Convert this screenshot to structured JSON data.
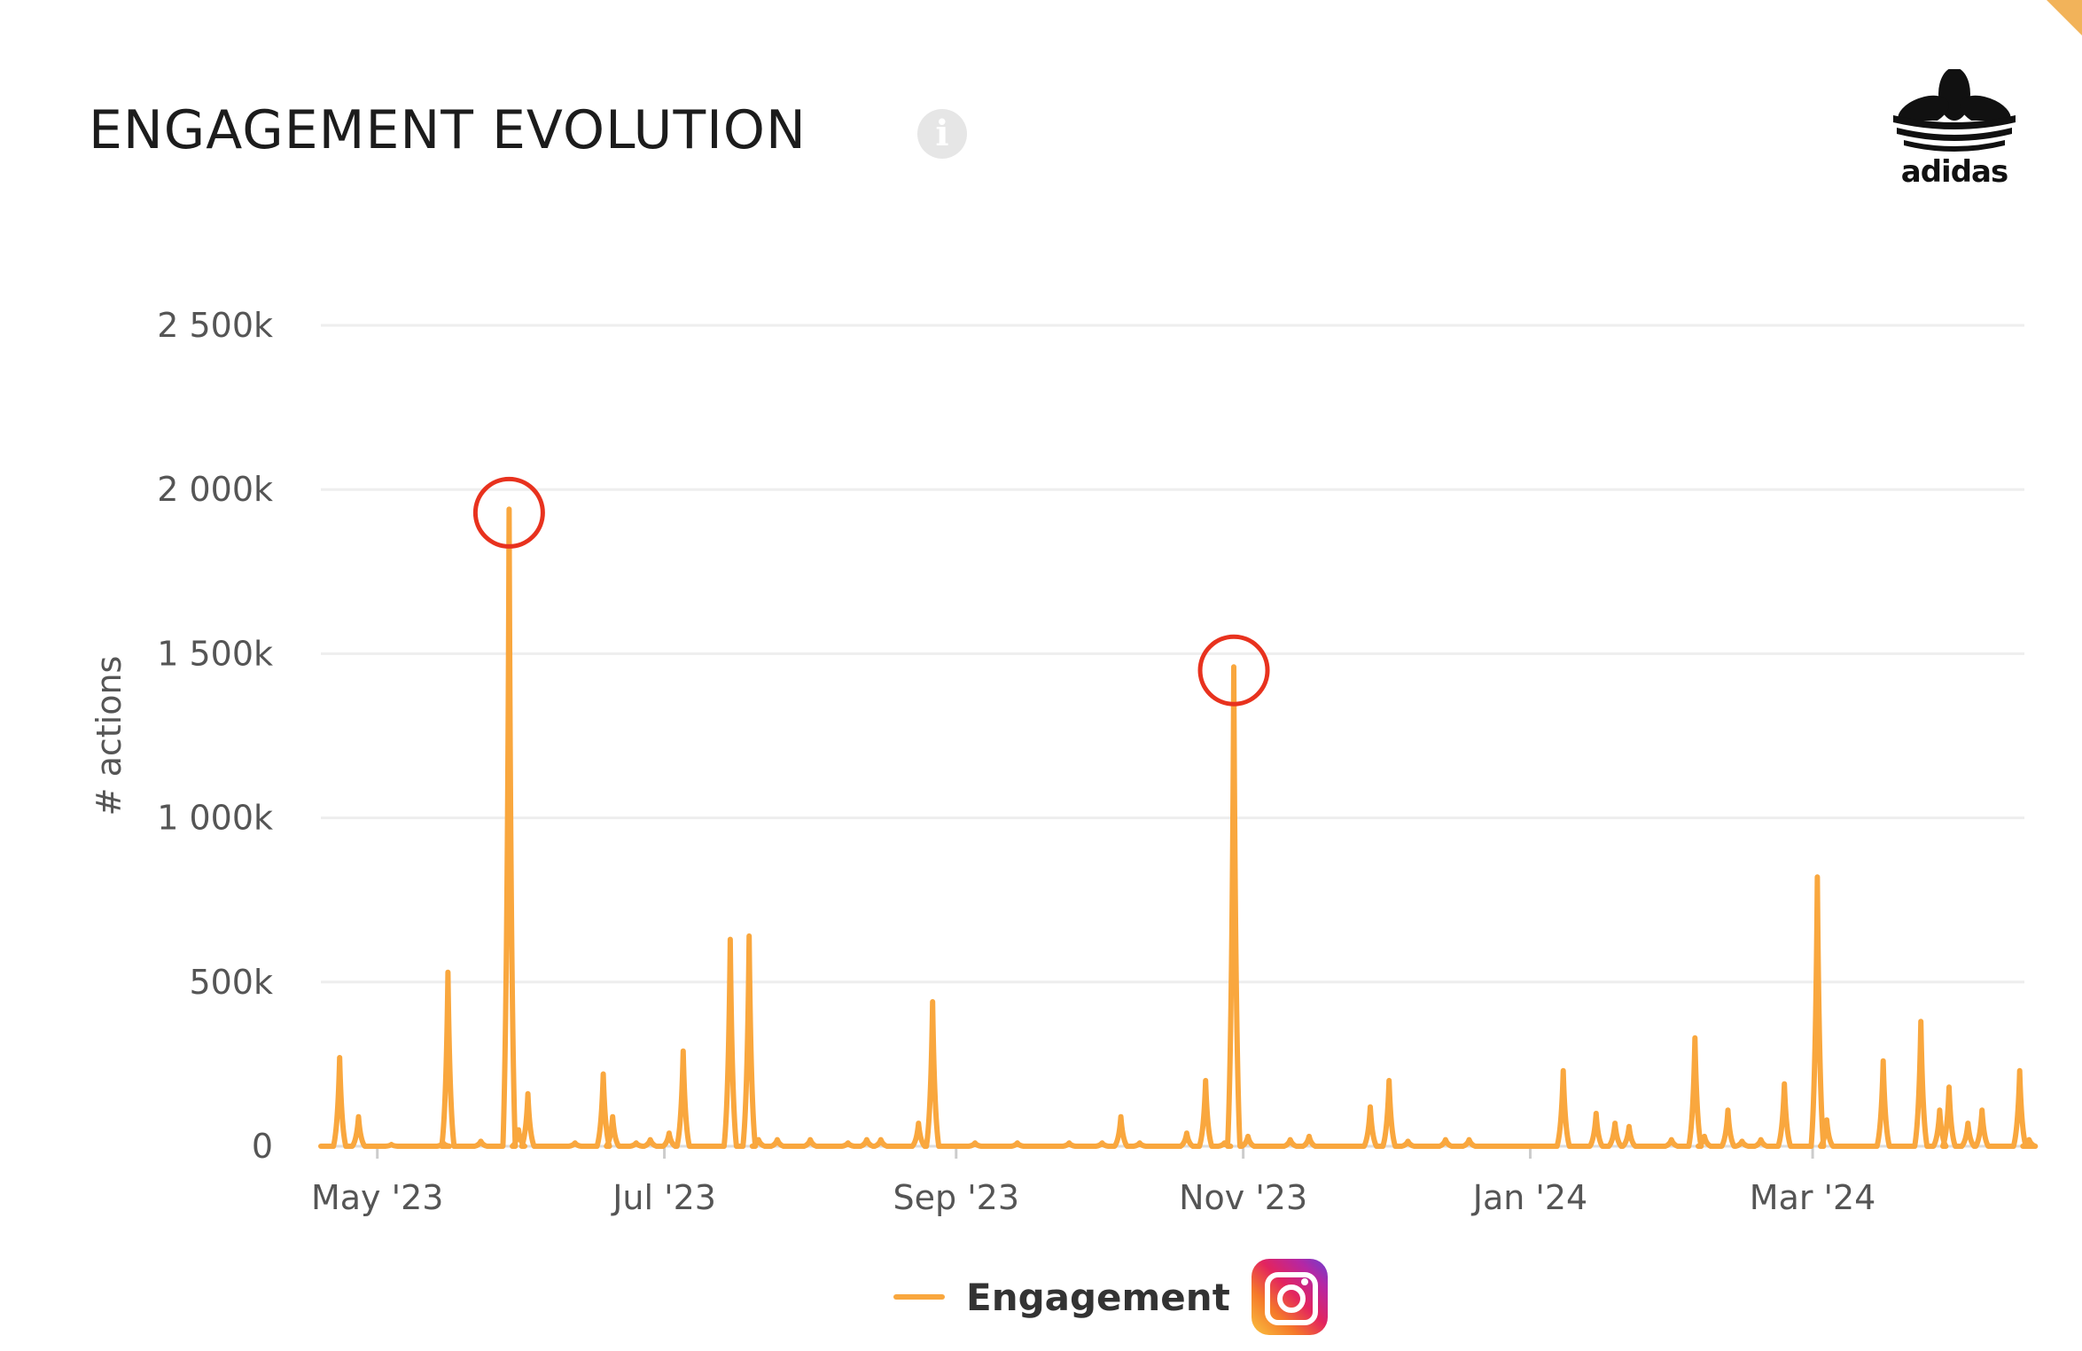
{
  "header": {
    "title": "ENGAGEMENT EVOLUTION",
    "info_icon": "info-icon",
    "logo_text": "adidas"
  },
  "colors": {
    "series": "#f9a73e",
    "highlight": "#e8321e",
    "grid": "#eeeeee",
    "axis_text": "#555555",
    "instagram": "#e1306c"
  },
  "chart_data": {
    "type": "line",
    "ylabel": "# actions",
    "xlabel": "",
    "ylim": [
      0,
      2500000
    ],
    "yticks": [
      0,
      500000,
      1000000,
      1500000,
      2000000,
      2500000
    ],
    "ytick_labels": [
      "0",
      "500k",
      "1 000k",
      "1 500k",
      "2 000k",
      "2 500k"
    ],
    "xlim": [
      "2023-04-19",
      "2024-04-15"
    ],
    "xticks": [
      "2023-05-01",
      "2023-07-01",
      "2023-09-01",
      "2023-11-01",
      "2024-01-01",
      "2024-03-01"
    ],
    "xtick_labels": [
      "May '23",
      "Jul '23",
      "Sep '23",
      "Nov '23",
      "Jan '24",
      "Mar '24"
    ],
    "grid": true,
    "legend_position": "bottom-center",
    "highlighted_points": [
      {
        "x": "2023-05-29",
        "y": 1940000
      },
      {
        "x": "2023-10-30",
        "y": 1460000
      }
    ],
    "series": [
      {
        "name": "Engagement",
        "icon": "instagram-icon",
        "points": [
          [
            "2023-04-23",
            270000
          ],
          [
            "2023-04-27",
            90000
          ],
          [
            "2023-05-04",
            5000
          ],
          [
            "2023-05-15",
            10000
          ],
          [
            "2023-05-16",
            530000
          ],
          [
            "2023-05-23",
            15000
          ],
          [
            "2023-05-29",
            1940000
          ],
          [
            "2023-05-31",
            50000
          ],
          [
            "2023-06-02",
            160000
          ],
          [
            "2023-06-12",
            10000
          ],
          [
            "2023-06-18",
            220000
          ],
          [
            "2023-06-20",
            90000
          ],
          [
            "2023-06-25",
            10000
          ],
          [
            "2023-06-28",
            20000
          ],
          [
            "2023-07-02",
            40000
          ],
          [
            "2023-07-05",
            290000
          ],
          [
            "2023-07-15",
            630000
          ],
          [
            "2023-07-19",
            640000
          ],
          [
            "2023-07-21",
            20000
          ],
          [
            "2023-07-25",
            20000
          ],
          [
            "2023-08-01",
            20000
          ],
          [
            "2023-08-09",
            10000
          ],
          [
            "2023-08-13",
            20000
          ],
          [
            "2023-08-16",
            20000
          ],
          [
            "2023-08-24",
            70000
          ],
          [
            "2023-08-27",
            440000
          ],
          [
            "2023-09-05",
            10000
          ],
          [
            "2023-09-14",
            10000
          ],
          [
            "2023-09-25",
            10000
          ],
          [
            "2023-10-02",
            10000
          ],
          [
            "2023-10-06",
            90000
          ],
          [
            "2023-10-10",
            10000
          ],
          [
            "2023-10-20",
            40000
          ],
          [
            "2023-10-24",
            200000
          ],
          [
            "2023-10-28",
            10000
          ],
          [
            "2023-10-30",
            1460000
          ],
          [
            "2023-11-02",
            30000
          ],
          [
            "2023-11-11",
            20000
          ],
          [
            "2023-11-15",
            30000
          ],
          [
            "2023-11-28",
            120000
          ],
          [
            "2023-12-02",
            200000
          ],
          [
            "2023-12-06",
            15000
          ],
          [
            "2023-12-14",
            20000
          ],
          [
            "2023-12-19",
            20000
          ],
          [
            "2024-01-08",
            230000
          ],
          [
            "2024-01-15",
            100000
          ],
          [
            "2024-01-19",
            70000
          ],
          [
            "2024-01-22",
            60000
          ],
          [
            "2024-01-31",
            20000
          ],
          [
            "2024-02-05",
            330000
          ],
          [
            "2024-02-07",
            30000
          ],
          [
            "2024-02-12",
            110000
          ],
          [
            "2024-02-15",
            15000
          ],
          [
            "2024-02-19",
            20000
          ],
          [
            "2024-02-24",
            190000
          ],
          [
            "2024-03-02",
            820000
          ],
          [
            "2024-03-04",
            80000
          ],
          [
            "2024-03-16",
            260000
          ],
          [
            "2024-03-24",
            380000
          ],
          [
            "2024-03-28",
            110000
          ],
          [
            "2024-03-30",
            180000
          ],
          [
            "2024-04-03",
            70000
          ],
          [
            "2024-04-06",
            110000
          ],
          [
            "2024-04-14",
            230000
          ],
          [
            "2024-04-16",
            20000
          ]
        ]
      }
    ]
  }
}
